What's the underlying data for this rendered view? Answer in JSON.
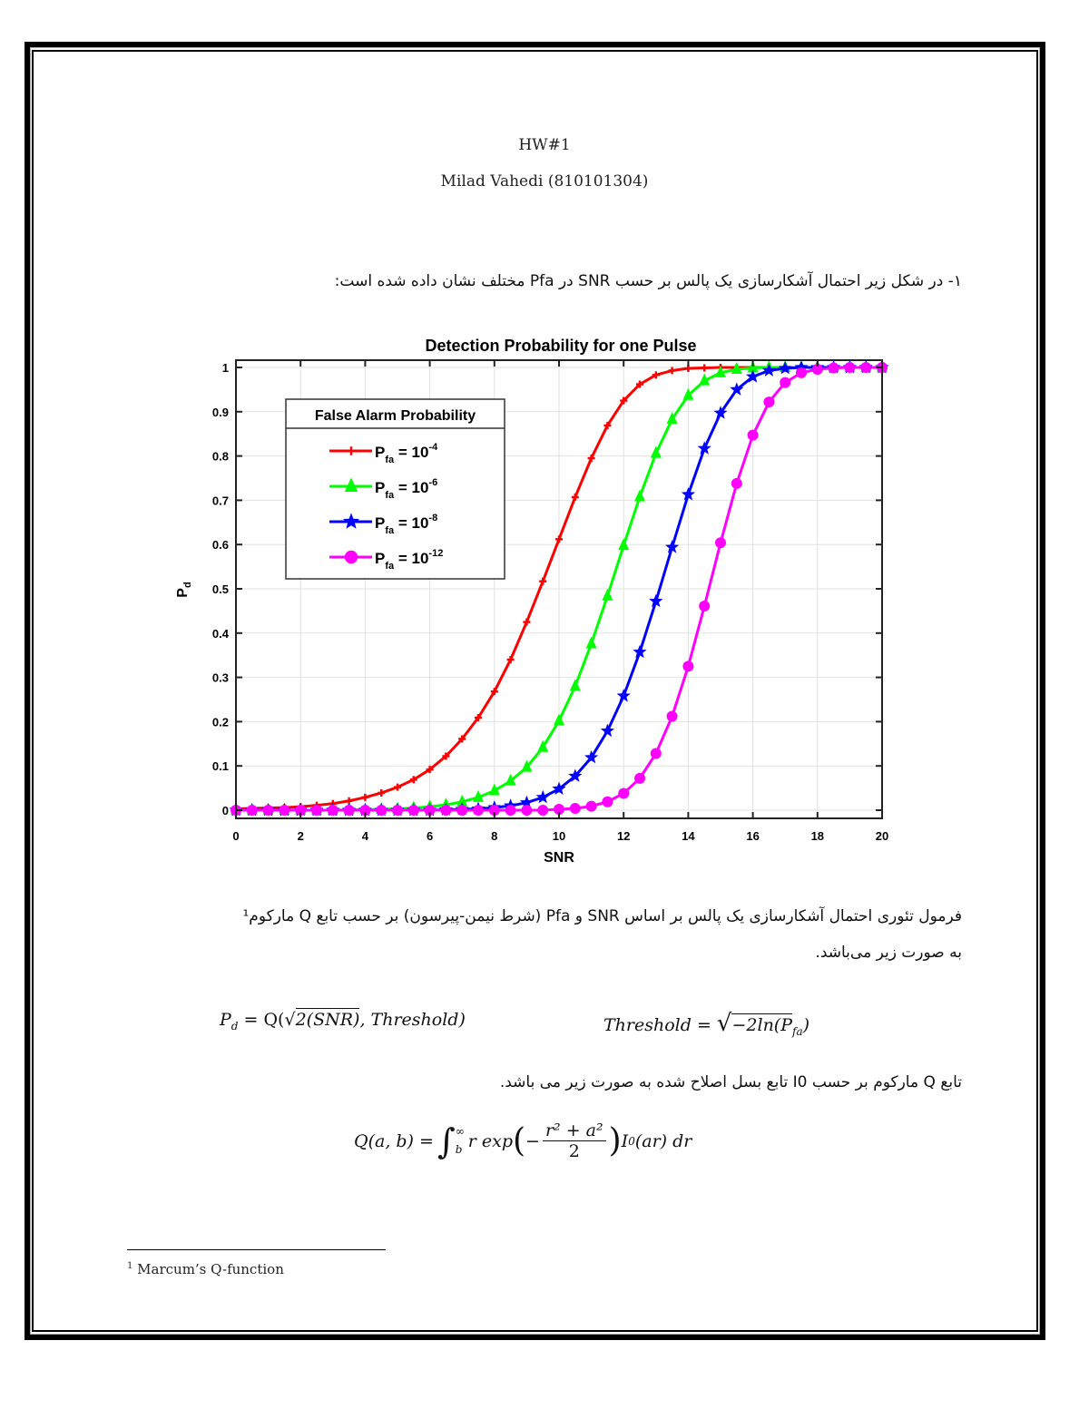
{
  "header": {
    "title": "HW#1",
    "author": "Milad Vahedi (810101304)"
  },
  "paragraphs": {
    "intro": "۱-  در شکل زیر احتمال آشکارسازی یک پالس بر حسب SNR در Pfa مختلف نشان داده شده است:",
    "formula_intro_line1": "فرمول تئوری احتمال آشکارسازی یک پالس بر اساس SNR و Pfa (شرط نیمن-پیرسون) بر حسب تابع Q مارکوم¹",
    "formula_intro_line2": "به صورت زیر می‌باشد.",
    "marcum_intro": "تابع Q مارکوم بر حسب I0 تابع بسل اصلاح شده به صورت زیر می باشد."
  },
  "equations": {
    "pd_lhs": "P",
    "pd_sub": "d",
    "pd_eq": " = Q(",
    "pd_sqrt": "2(SNR)",
    "pd_rest": ", Threshold)",
    "thr_lhs": "Threshold = ",
    "thr_sqrt": "−2ln(P",
    "thr_sub": "fa",
    "thr_close": ")",
    "q_lhs": "Q(a, b) = ",
    "q_int_upper": "∞",
    "q_int_lower": "b",
    "q_body1": "r exp",
    "q_num": "r² + a²",
    "q_den": "2",
    "q_body2": "I",
    "q_body2_sub": "0",
    "q_body3": "(ar) dr"
  },
  "footnote": {
    "marker": "1",
    "text": "Marcum’s Q-function"
  },
  "chart_data": {
    "type": "line",
    "title": "Detection Probability for one Pulse",
    "xlabel": "SNR",
    "ylabel": "P_d",
    "xlim": [
      0,
      20
    ],
    "ylim": [
      0,
      1
    ],
    "xticks": [
      0,
      2,
      4,
      6,
      8,
      10,
      12,
      14,
      16,
      18,
      20
    ],
    "yticks": [
      0,
      0.1,
      0.2,
      0.3,
      0.4,
      0.5,
      0.6,
      0.7,
      0.8,
      0.9,
      1
    ],
    "grid": true,
    "legend_title": "False Alarm Probability",
    "legend_position": "upper-left",
    "x": [
      0,
      0.5,
      1,
      1.5,
      2,
      2.5,
      3,
      3.5,
      4,
      4.5,
      5,
      5.5,
      6,
      6.5,
      7,
      7.5,
      8,
      8.5,
      9,
      9.5,
      10,
      10.5,
      11,
      11.5,
      12,
      12.5,
      13,
      13.5,
      14,
      14.5,
      15,
      15.5,
      16,
      16.5,
      17,
      17.5,
      18,
      18.5,
      19,
      19.5,
      20
    ],
    "series": [
      {
        "name": "P_fa = 10^-4",
        "color": "#ff0000",
        "marker": "plus",
        "values": [
          0.003,
          0.004,
          0.005,
          0.006,
          0.008,
          0.011,
          0.015,
          0.021,
          0.029,
          0.039,
          0.052,
          0.069,
          0.092,
          0.122,
          0.161,
          0.209,
          0.268,
          0.34,
          0.425,
          0.517,
          0.612,
          0.707,
          0.795,
          0.869,
          0.925,
          0.962,
          0.983,
          0.993,
          0.998,
          0.999,
          1,
          1,
          1,
          1,
          1,
          1,
          1,
          1,
          1,
          1,
          1
        ]
      },
      {
        "name": "P_fa = 10^-6",
        "color": "#00ff00",
        "marker": "triangle",
        "values": [
          0,
          0,
          0,
          0,
          0,
          0,
          0,
          0.001,
          0.001,
          0.002,
          0.003,
          0.005,
          0.008,
          0.012,
          0.019,
          0.029,
          0.044,
          0.066,
          0.097,
          0.142,
          0.202,
          0.28,
          0.376,
          0.484,
          0.598,
          0.708,
          0.806,
          0.883,
          0.937,
          0.97,
          0.988,
          0.996,
          0.999,
          1,
          1,
          1,
          1,
          1,
          1,
          1,
          1
        ]
      },
      {
        "name": "P_fa = 10^-8",
        "color": "#0000ff",
        "marker": "star",
        "values": [
          0,
          0,
          0,
          0,
          0,
          0,
          0,
          0,
          0,
          0,
          0,
          0,
          0,
          0.001,
          0.002,
          0.003,
          0.006,
          0.01,
          0.017,
          0.029,
          0.048,
          0.077,
          0.119,
          0.179,
          0.258,
          0.357,
          0.472,
          0.594,
          0.713,
          0.817,
          0.897,
          0.95,
          0.979,
          0.993,
          0.998,
          1,
          1,
          1,
          1,
          1,
          1
        ]
      },
      {
        "name": "P_fa = 10^-12",
        "color": "#ff00ff",
        "marker": "circle",
        "values": [
          0,
          0,
          0,
          0,
          0,
          0,
          0,
          0,
          0,
          0,
          0,
          0,
          0,
          0,
          0,
          0,
          0,
          0,
          0,
          0,
          0.002,
          0.004,
          0.009,
          0.019,
          0.038,
          0.072,
          0.128,
          0.212,
          0.325,
          0.461,
          0.604,
          0.738,
          0.847,
          0.922,
          0.966,
          0.988,
          0.996,
          0.999,
          1,
          1,
          1
        ]
      }
    ]
  }
}
